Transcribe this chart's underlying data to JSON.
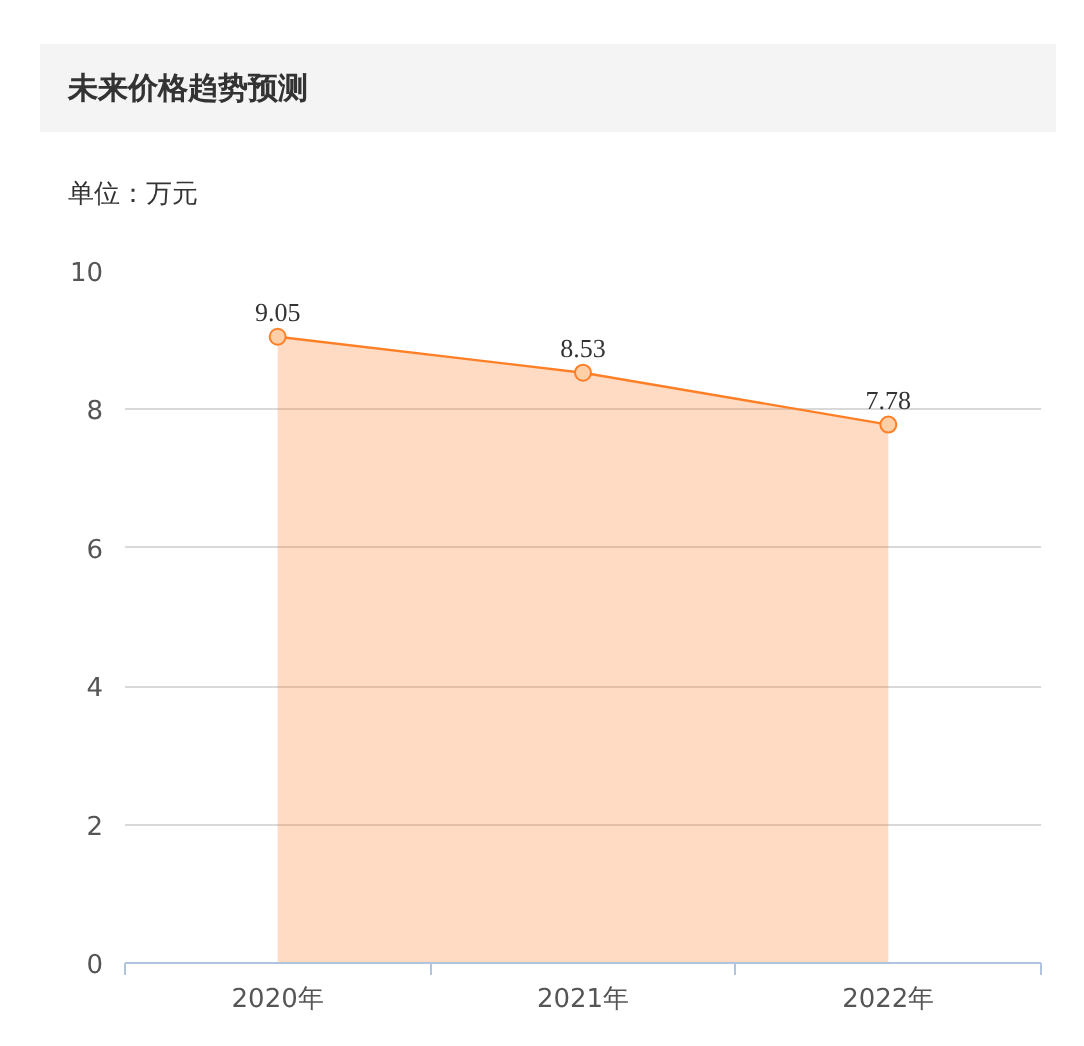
{
  "chart_data": {
    "type": "area",
    "title": "未来价格趋势预测",
    "subtitle": "单位：万元",
    "categories": [
      "2020年",
      "2021年",
      "2022年"
    ],
    "series": [
      {
        "color": "#ff7f27",
        "values": [
          9.05,
          8.53,
          7.78
        ]
      }
    ],
    "ylim": [
      0,
      10
    ],
    "yticks": [
      0,
      2,
      4,
      6,
      8,
      10
    ],
    "grid": "y",
    "marker": "circle",
    "data_labels": true
  }
}
